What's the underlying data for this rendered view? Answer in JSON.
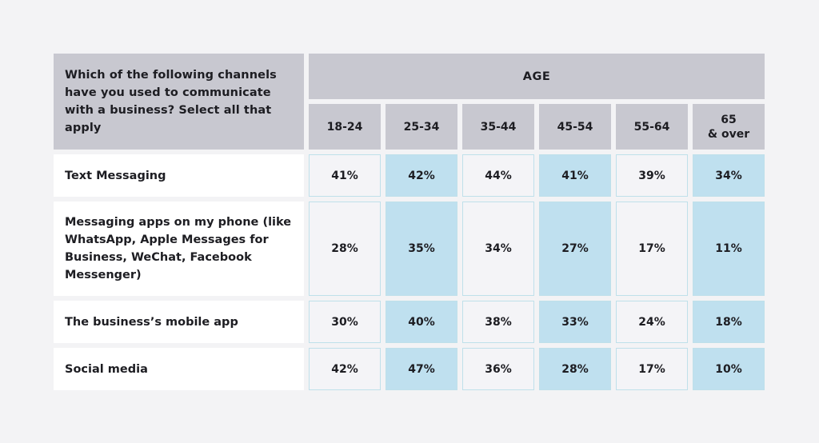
{
  "chart_data": {
    "type": "table",
    "question": "Which of the following channels have you used to communicate with a business? Select all that apply",
    "group_header": "AGE",
    "columns": [
      "18-24",
      "25-34",
      "35-44",
      "45-54",
      "55-64",
      "65\n& over"
    ],
    "rows": [
      {
        "label": "Text Messaging",
        "values": [
          "41%",
          "42%",
          "44%",
          "41%",
          "39%",
          "34%"
        ]
      },
      {
        "label": "Messaging apps on my phone (like WhatsApp, Apple Messages for Business, WeChat, Facebook Messenger)",
        "values": [
          "28%",
          "35%",
          "34%",
          "27%",
          "17%",
          "11%"
        ]
      },
      {
        "label": "The business’s mobile app",
        "values": [
          "30%",
          "40%",
          "38%",
          "33%",
          "24%",
          "18%"
        ]
      },
      {
        "label": "Social media",
        "values": [
          "42%",
          "47%",
          "36%",
          "28%",
          "17%",
          "10%"
        ]
      }
    ],
    "colors": {
      "header_bg": "#c8c8d0",
      "label_bg": "#ffffff",
      "plain_cell_bg": "#f4f4f7",
      "highlight_cell_bg": "#bfe0ef",
      "page_bg": "#f3f3f5"
    }
  }
}
